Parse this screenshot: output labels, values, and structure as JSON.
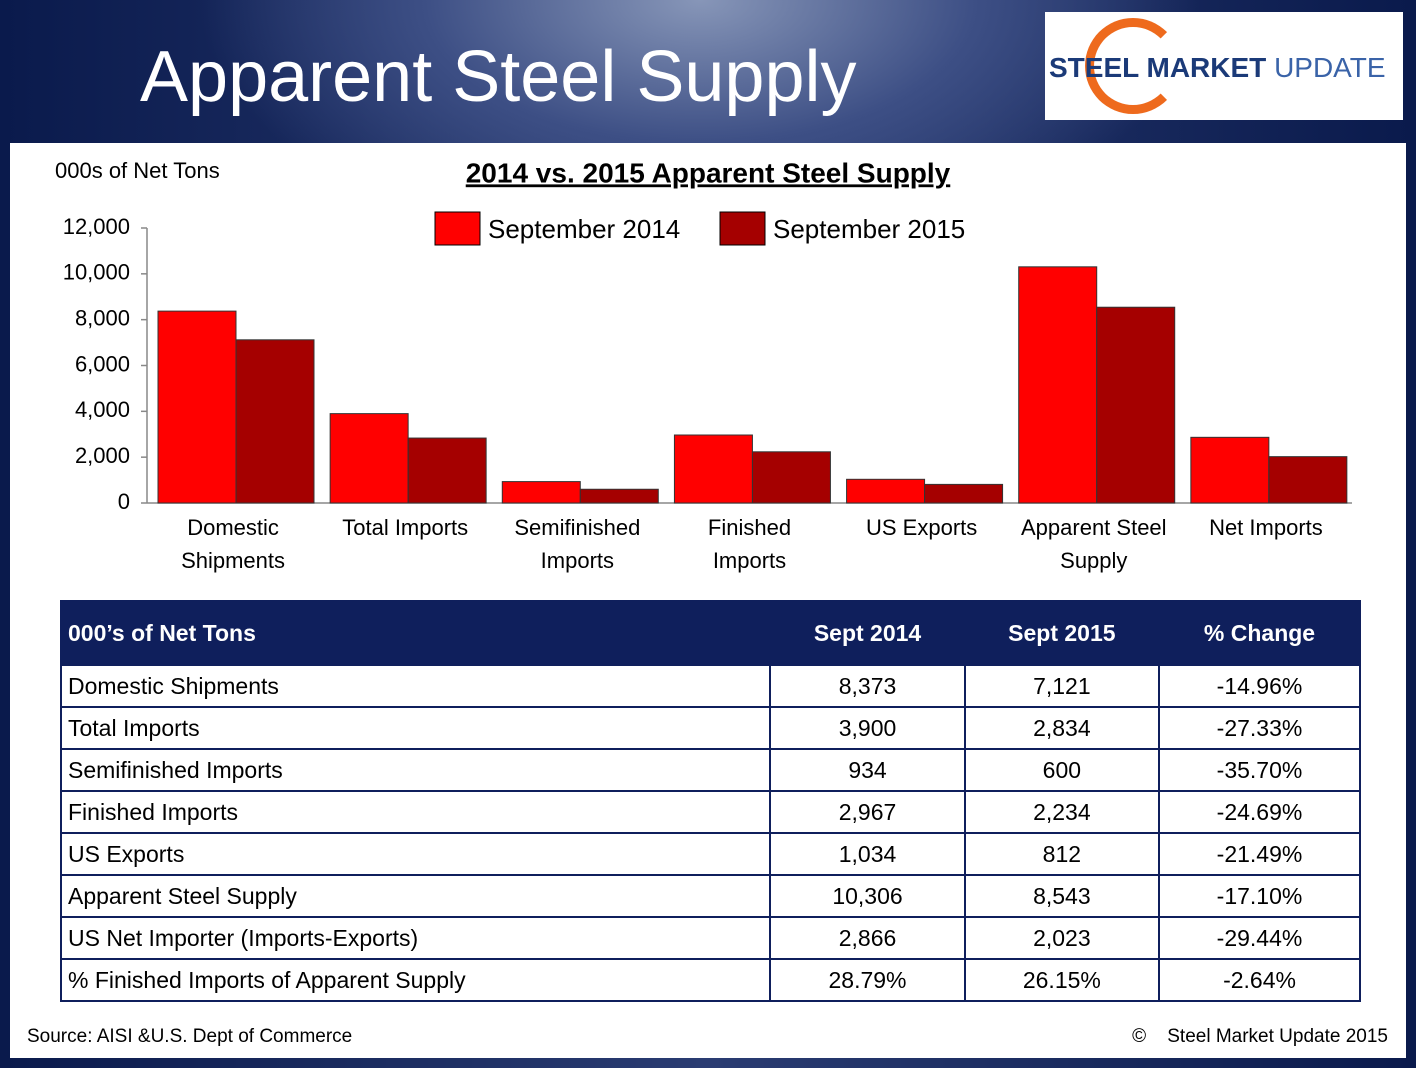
{
  "title": "Apparent Steel Supply",
  "logo": {
    "bold": "STEEL MARKET",
    "light": "UPDATE"
  },
  "chart_data": {
    "type": "bar",
    "title": "2014 vs. 2015 Apparent Steel Supply",
    "y_label": "000s of Net Tons",
    "categories": [
      "Domestic Shipments",
      "Total Imports",
      "Semifinished Imports",
      "Finished Imports",
      "US Exports",
      "Apparent Steel Supply",
      "Net Imports"
    ],
    "series": [
      {
        "name": "September 2014",
        "color": "#ff0000",
        "values": [
          8373,
          3900,
          934,
          2967,
          1034,
          10306,
          2866
        ]
      },
      {
        "name": "September 2015",
        "color": "#a50000",
        "values": [
          7121,
          2834,
          600,
          2234,
          812,
          8543,
          2023
        ]
      }
    ],
    "ylim": [
      0,
      12000
    ],
    "yticks": [
      0,
      {
        "value": 2000,
        "label": "2,000"
      },
      {
        "value": 4000,
        "label": "4,000"
      },
      {
        "value": 6000,
        "label": "6,000"
      },
      {
        "value": 8000,
        "label": "8,000"
      },
      {
        "value": 10000,
        "label": "10,000"
      },
      {
        "value": 12000,
        "label": "12,000"
      }
    ],
    "grid": false,
    "legend": "top"
  },
  "table": {
    "header": [
      "000’s of Net Tons",
      "Sept 2014",
      "Sept 2015",
      "% Change"
    ],
    "rows": [
      [
        "Domestic Shipments",
        "8,373",
        "7,121",
        "-14.96%"
      ],
      [
        "Total Imports",
        "3,900",
        "2,834",
        "-27.33%"
      ],
      [
        "Semifinished Imports",
        "934",
        "600",
        "-35.70%"
      ],
      [
        "Finished Imports",
        "2,967",
        "2,234",
        "-24.69%"
      ],
      [
        "US Exports",
        "1,034",
        "812",
        "-21.49%"
      ],
      [
        "Apparent Steel Supply",
        "10,306",
        "8,543",
        "-17.10%"
      ],
      [
        "US Net Importer (Imports-Exports)",
        "2,866",
        "2,023",
        "-29.44%"
      ],
      [
        "% Finished Imports of Apparent Supply",
        "28.79%",
        "26.15%",
        "-2.64%"
      ]
    ]
  },
  "footer": {
    "source": "Source:  AISI &U.S. Dept of Commerce",
    "copyright": "©    Steel Market Update 2015"
  }
}
